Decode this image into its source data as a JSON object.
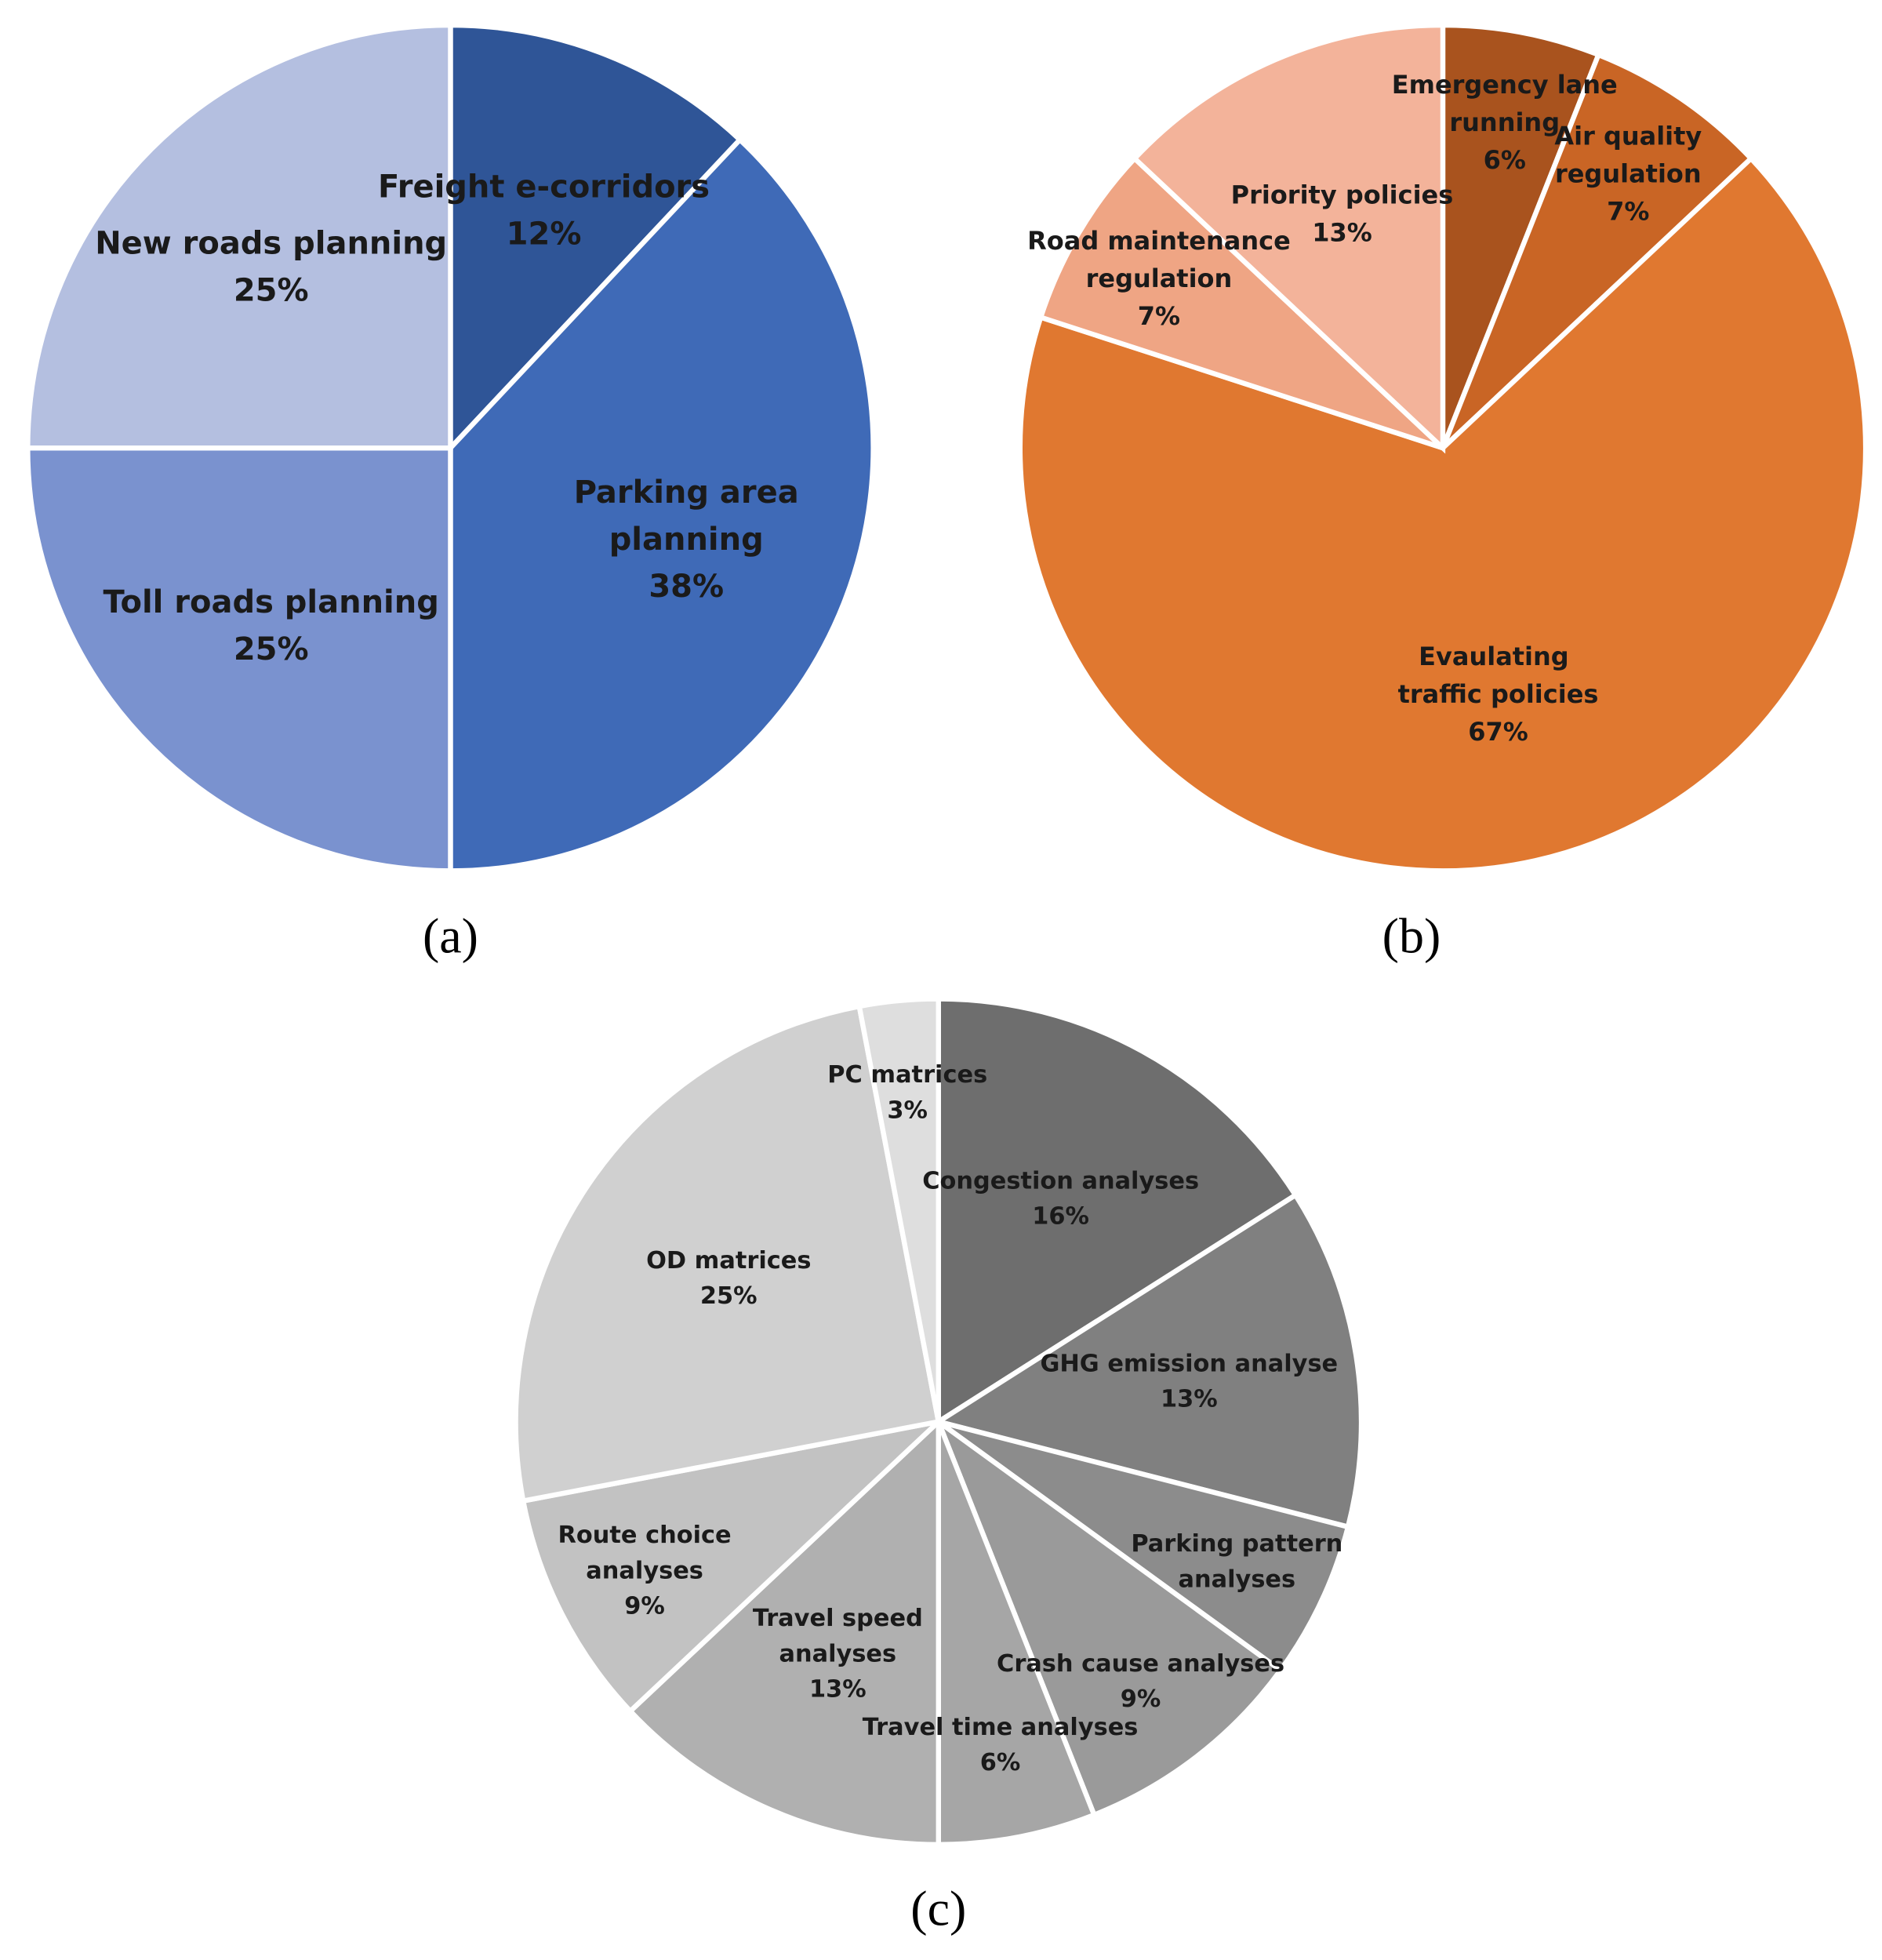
{
  "chart_data": [
    {
      "type": "pie",
      "caption": "(a)",
      "categories": [
        "Freight e-corridors",
        "Parking area planning",
        "Toll roads planning",
        "New roads planning"
      ],
      "values": [
        12,
        38,
        25,
        25
      ],
      "value_labels": [
        "12%",
        "38%",
        "25%",
        "25%"
      ],
      "colors": [
        "#2f5597",
        "#3f6ab7",
        "#7a92cf",
        "#b4bfe0"
      ]
    },
    {
      "type": "pie",
      "caption": "(b)",
      "categories": [
        "Emergency lane running",
        "Air quality regulation",
        "Evaulating  traffic policies",
        "Road maintenance regulation",
        "Priority policies"
      ],
      "values": [
        6,
        7,
        67,
        7,
        13
      ],
      "value_labels": [
        "6%",
        "7%",
        "67%",
        "7%",
        "13%"
      ],
      "colors": [
        "#a9531e",
        "#c96525",
        "#e07830",
        "#efa584",
        "#f3b39a"
      ]
    },
    {
      "type": "pie",
      "caption": "(c)",
      "categories": [
        "Congestion analyses",
        "GHG emission analyse",
        "Parking pattern analyses",
        "Crash cause analyses",
        "Travel time analyses",
        "Travel speed analyses",
        "Route choice analyses",
        "OD matrices",
        "PC matrices"
      ],
      "values": [
        16,
        13,
        6,
        9,
        6,
        13,
        9,
        25,
        3
      ],
      "value_labels": [
        "16%",
        "13%",
        null,
        "9%",
        "6%",
        "13%",
        "9%",
        "25%",
        "3%"
      ],
      "colors": [
        "#6e6e6e",
        "#808080",
        "#8c8c8c",
        "#9a9a9a",
        "#a6a6a6",
        "#b0b0b0",
        "#c2c2c2",
        "#d0d0d0",
        "#dedede"
      ]
    }
  ]
}
